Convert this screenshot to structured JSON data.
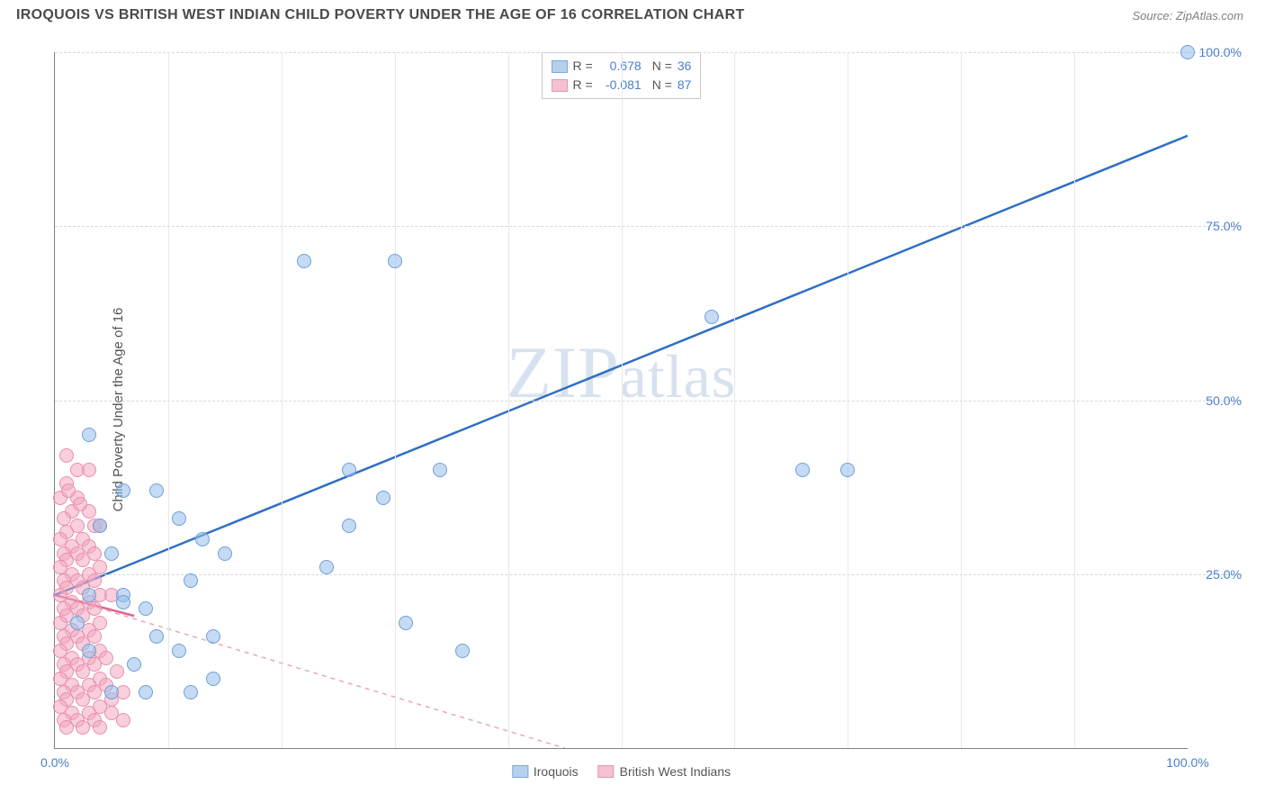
{
  "title": "IROQUOIS VS BRITISH WEST INDIAN CHILD POVERTY UNDER THE AGE OF 16 CORRELATION CHART",
  "source_label": "Source: ",
  "source_name": "ZipAtlas.com",
  "watermark": "ZIPatlas",
  "y_axis_label": "Child Poverty Under the Age of 16",
  "chart": {
    "type": "scatter",
    "xlim": [
      0,
      100
    ],
    "ylim": [
      0,
      100
    ],
    "y_ticks": [
      {
        "v": 25,
        "l": "25.0%"
      },
      {
        "v": 50,
        "l": "50.0%"
      },
      {
        "v": 75,
        "l": "75.0%"
      },
      {
        "v": 100,
        "l": "100.0%"
      }
    ],
    "x_ticks": [
      {
        "v": 0,
        "l": "0.0%"
      },
      {
        "v": 100,
        "l": "100.0%"
      }
    ],
    "x_gridlines": [
      10,
      20,
      30,
      40,
      50,
      60,
      70,
      80,
      90
    ],
    "background_color": "#ffffff",
    "grid_color": "#d8d8d8",
    "axis_color": "#808080",
    "tick_font_color": "#4a7fc9",
    "tick_fontsize": 14,
    "marker_radius": 8,
    "series": [
      {
        "name": "Iroquois",
        "color_fill": "rgba(150,190,235,0.55)",
        "color_stroke": "#6f9fd8",
        "r": 0.678,
        "n": 36,
        "trend": {
          "x1": 0,
          "y1": 22,
          "x2": 100,
          "y2": 88,
          "color": "#2f6fc4",
          "width": 2.5,
          "dash": "none"
        },
        "points": [
          [
            100,
            100
          ],
          [
            66,
            40
          ],
          [
            70,
            40
          ],
          [
            58,
            62
          ],
          [
            22,
            70
          ],
          [
            30,
            70
          ],
          [
            36,
            14
          ],
          [
            26,
            40
          ],
          [
            29,
            36
          ],
          [
            26,
            32
          ],
          [
            24,
            26
          ],
          [
            3,
            45
          ],
          [
            6,
            37
          ],
          [
            9,
            37
          ],
          [
            11,
            33
          ],
          [
            13,
            30
          ],
          [
            15,
            28
          ],
          [
            12,
            24
          ],
          [
            6,
            22
          ],
          [
            3,
            22
          ],
          [
            2,
            18
          ],
          [
            3,
            14
          ],
          [
            6,
            21
          ],
          [
            8,
            20
          ],
          [
            9,
            16
          ],
          [
            11,
            14
          ],
          [
            14,
            16
          ],
          [
            7,
            12
          ],
          [
            5,
            8
          ],
          [
            8,
            8
          ],
          [
            12,
            8
          ],
          [
            14,
            10
          ],
          [
            34,
            40
          ],
          [
            4,
            32
          ],
          [
            5,
            28
          ],
          [
            31,
            18
          ]
        ]
      },
      {
        "name": "British West Indians",
        "color_fill": "rgba(242,167,190,0.55)",
        "color_stroke": "#e88fb0",
        "r": -0.081,
        "n": 87,
        "trend": {
          "x1": 0,
          "y1": 22,
          "x2": 45,
          "y2": 0,
          "color": "#e9a6bd",
          "width": 1.5,
          "dash": "5,5"
        },
        "trend_solid": {
          "x1": 0,
          "y1": 22,
          "x2": 7,
          "y2": 19,
          "color": "#e06692",
          "width": 2.5
        },
        "points": [
          [
            1,
            42
          ],
          [
            2,
            40
          ],
          [
            3,
            40
          ],
          [
            1,
            38
          ],
          [
            2,
            36
          ],
          [
            0.5,
            36
          ],
          [
            1.5,
            34
          ],
          [
            3,
            34
          ],
          [
            0.8,
            33
          ],
          [
            2,
            32
          ],
          [
            3.5,
            32
          ],
          [
            1,
            31
          ],
          [
            2.5,
            30
          ],
          [
            4,
            32
          ],
          [
            0.5,
            30
          ],
          [
            1.5,
            29
          ],
          [
            3,
            29
          ],
          [
            0.8,
            28
          ],
          [
            2,
            28
          ],
          [
            3.5,
            28
          ],
          [
            1,
            27
          ],
          [
            2.5,
            27
          ],
          [
            4,
            26
          ],
          [
            0.5,
            26
          ],
          [
            1.5,
            25
          ],
          [
            3,
            25
          ],
          [
            0.8,
            24
          ],
          [
            2,
            24
          ],
          [
            3.5,
            24
          ],
          [
            1,
            23
          ],
          [
            2.5,
            23
          ],
          [
            4,
            22
          ],
          [
            0.5,
            22
          ],
          [
            1.5,
            21
          ],
          [
            3,
            21
          ],
          [
            5,
            22
          ],
          [
            0.8,
            20
          ],
          [
            2,
            20
          ],
          [
            3.5,
            20
          ],
          [
            1,
            19
          ],
          [
            2.5,
            19
          ],
          [
            4,
            18
          ],
          [
            0.5,
            18
          ],
          [
            1.5,
            17
          ],
          [
            3,
            17
          ],
          [
            0.8,
            16
          ],
          [
            2,
            16
          ],
          [
            3.5,
            16
          ],
          [
            1,
            15
          ],
          [
            2.5,
            15
          ],
          [
            4,
            14
          ],
          [
            0.5,
            14
          ],
          [
            1.5,
            13
          ],
          [
            3,
            13
          ],
          [
            0.8,
            12
          ],
          [
            2,
            12
          ],
          [
            3.5,
            12
          ],
          [
            1,
            11
          ],
          [
            2.5,
            11
          ],
          [
            4,
            10
          ],
          [
            0.5,
            10
          ],
          [
            1.5,
            9
          ],
          [
            3,
            9
          ],
          [
            0.8,
            8
          ],
          [
            2,
            8
          ],
          [
            3.5,
            8
          ],
          [
            1,
            7
          ],
          [
            2.5,
            7
          ],
          [
            4,
            6
          ],
          [
            0.5,
            6
          ],
          [
            1.5,
            5
          ],
          [
            3,
            5
          ],
          [
            0.8,
            4
          ],
          [
            2,
            4
          ],
          [
            3.5,
            4
          ],
          [
            1,
            3
          ],
          [
            2.5,
            3
          ],
          [
            4,
            3
          ],
          [
            5,
            5
          ],
          [
            6,
            4
          ],
          [
            5,
            7
          ],
          [
            4.5,
            9
          ],
          [
            6,
            8
          ],
          [
            5.5,
            11
          ],
          [
            4.5,
            13
          ],
          [
            1.2,
            37
          ],
          [
            2.2,
            35
          ]
        ]
      }
    ]
  },
  "stats_box": {
    "rows": [
      {
        "swatch": "blue",
        "r_label": "R =",
        "r_val": "0.678",
        "n_label": "N =",
        "n_val": "36"
      },
      {
        "swatch": "pink",
        "r_label": "R =",
        "r_val": "-0.081",
        "n_label": "N =",
        "n_val": "87"
      }
    ]
  },
  "bottom_legend": [
    {
      "swatch": "blue",
      "label": "Iroquois"
    },
    {
      "swatch": "pink",
      "label": "British West Indians"
    }
  ]
}
